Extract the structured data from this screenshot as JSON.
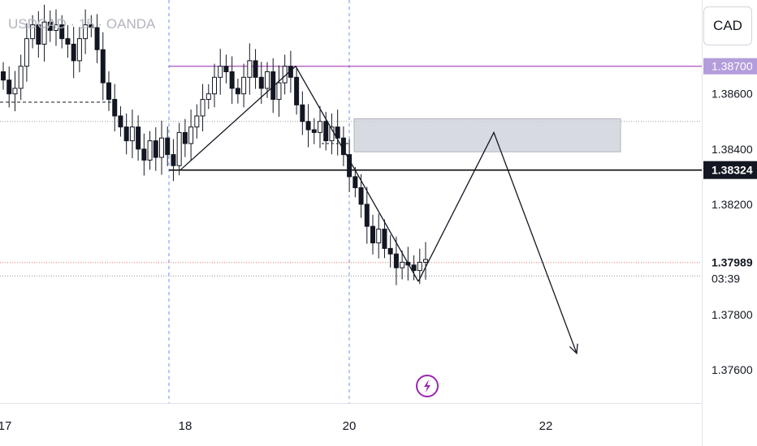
{
  "header": {
    "symbol_title": "USDCAD · 15 · OANDA",
    "currency_button": "CAD"
  },
  "chart_data": {
    "type": "candlestick",
    "symbol": "USDCAD",
    "interval": "15",
    "broker": "OANDA",
    "y_ticks": [
      "1.38600",
      "1.38400",
      "1.38200",
      "1.37800",
      "1.37600"
    ],
    "x_ticks": [
      "17",
      "18",
      "20",
      "22"
    ],
    "ylim": [
      1.3748,
      1.3894
    ],
    "price_labels": [
      {
        "value": 1.387,
        "text": "1.38700",
        "style": "purple",
        "name": "resistance-price-label"
      },
      {
        "value": 1.38324,
        "text": "1.38324",
        "style": "dark",
        "name": "support-price-label"
      },
      {
        "value": 1.37989,
        "text": "1.37989",
        "style": "plain",
        "name": "current-price-label"
      }
    ],
    "countdown": "03:39",
    "levels": [
      {
        "value": 1.387,
        "kind": "resistance",
        "color": "#9c27b0"
      },
      {
        "value": 1.38324,
        "kind": "support",
        "color": "#000000"
      },
      {
        "value": 1.385,
        "kind": "dotted",
        "color": "#9598a1"
      },
      {
        "value": 1.37989,
        "kind": "current-price",
        "color": "#9598a1"
      },
      {
        "value": 1.3794,
        "kind": "dotted",
        "color": "#9598a1"
      }
    ],
    "supply_zone": {
      "top": 1.3851,
      "bottom": 1.3839
    },
    "projection": {
      "from_price": 1.3792,
      "to_price": 1.3846,
      "target_price": 1.3766
    },
    "candle_series": [
      1.3865,
      1.386,
      1.3862,
      1.387,
      1.388,
      1.3885,
      1.3878,
      1.3886,
      1.3883,
      1.3885,
      1.388,
      1.3878,
      1.3872,
      1.388,
      1.3885,
      1.3884,
      1.3876,
      1.3864,
      1.3858,
      1.3852,
      1.3848,
      1.3843,
      1.3848,
      1.384,
      1.3836,
      1.3843,
      1.3837,
      1.3844,
      1.3838,
      1.3834,
      1.3846,
      1.3842,
      1.3848,
      1.3852,
      1.3858,
      1.386,
      1.3866,
      1.387,
      1.3868,
      1.3862,
      1.386,
      1.3866,
      1.3872,
      1.3866,
      1.3862,
      1.3868,
      1.3858,
      1.3864,
      1.387,
      1.3866,
      1.3856,
      1.385,
      1.3847,
      1.3846,
      1.385,
      1.3843,
      1.3848,
      1.3844,
      1.3838,
      1.383,
      1.3826,
      1.382,
      1.3812,
      1.3806,
      1.3811,
      1.3804,
      1.3802,
      1.3797,
      1.3799,
      1.3798,
      1.3796,
      1.3799,
      1.38
    ]
  },
  "icons": {
    "lightning": "lightning-icon"
  },
  "colors": {
    "up": "#26a69a",
    "down": "#131722",
    "zone": "#d1d4dc",
    "resistance": "#9c27b0",
    "grid_vertical": "#2962ff"
  }
}
